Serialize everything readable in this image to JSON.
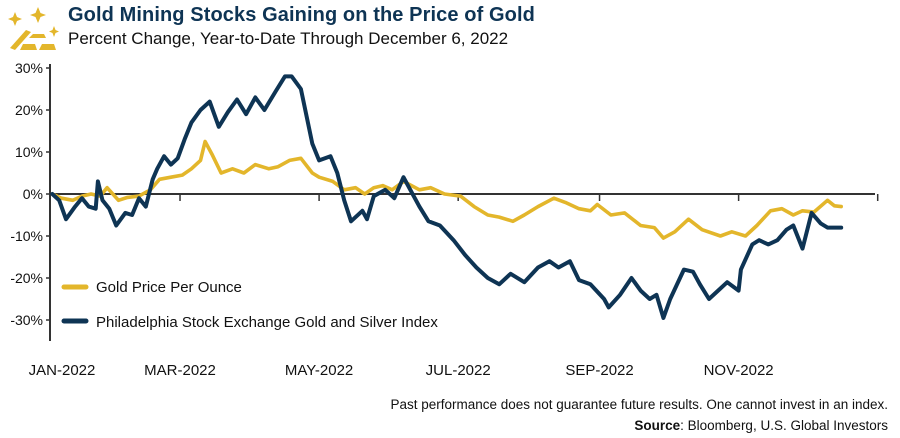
{
  "header": {
    "title": "Gold Mining Stocks Gaining on the Price of Gold",
    "subtitle": "Percent Change, Year-to-Date Through December 6, 2022",
    "logo_icon": "gold-bars-sparkle-icon"
  },
  "footer": {
    "disclaimer": "Past performance does not guarantee future results. One cannot invest in an index.",
    "source_label": "Source",
    "source_text": ": Bloomberg, U.S. Global Investors"
  },
  "colors": {
    "gold": "#e3b62b",
    "navy": "#0e3454",
    "axis": "#333333",
    "title": "#0e3454"
  },
  "chart_data": {
    "type": "line",
    "title": "Gold Mining Stocks Gaining on the Price of Gold",
    "subtitle": "Percent Change, Year-to-Date Through December 6, 2022",
    "xlabel": "",
    "ylabel": "",
    "x_unit": "day of year 2022",
    "xlim": [
      0,
      365
    ],
    "ylim": [
      -35,
      30
    ],
    "yticks": [
      30,
      20,
      10,
      0,
      -10,
      -20,
      -30
    ],
    "ytick_labels": [
      "30%",
      "20%",
      "10%",
      "0%",
      "-10%",
      "-20%",
      "-30%"
    ],
    "xticks": [
      59,
      120,
      181,
      243,
      304,
      365
    ],
    "xtick_labels": [
      "JAN-2022",
      "MAR-2022",
      "MAY-2022",
      "JUL-2022",
      "SEP-2022",
      "NOV-2022"
    ],
    "xlabel_days": [
      7,
      59,
      120,
      181,
      243,
      304
    ],
    "grid": false,
    "legend": "lower-left",
    "series": [
      {
        "name": "Gold Price Per Ounce",
        "color": "#e3b62b",
        "x": [
          3,
          7,
          12,
          16,
          20,
          24,
          27,
          32,
          36,
          41,
          46,
          50,
          55,
          60,
          64,
          68,
          70,
          73,
          77,
          82,
          87,
          92,
          98,
          102,
          107,
          112,
          117,
          120,
          126,
          131,
          136,
          140,
          144,
          148,
          152,
          157,
          164,
          169,
          175,
          182,
          188,
          194,
          199,
          205,
          210,
          216,
          223,
          228,
          234,
          239,
          242,
          248,
          254,
          261,
          267,
          271,
          276,
          282,
          288,
          296,
          301,
          307,
          312,
          318,
          323,
          328,
          332,
          337,
          343,
          346,
          349
        ],
        "values": [
          0,
          -1,
          -1.5,
          -0.5,
          0,
          -0.5,
          1.5,
          -1.5,
          -0.8,
          -0.5,
          1,
          3.5,
          4,
          4.5,
          6,
          8,
          12.5,
          9.5,
          5,
          6,
          5,
          7,
          6,
          6.5,
          8,
          8.5,
          5,
          4,
          3,
          1,
          1.5,
          0,
          1.5,
          2,
          1,
          3,
          1,
          1.5,
          0,
          -0.5,
          -3,
          -5,
          -5.5,
          -6.5,
          -5,
          -3,
          -1,
          -2,
          -3.5,
          -4,
          -2.5,
          -5,
          -4.5,
          -7.5,
          -8,
          -10.5,
          -9,
          -6,
          -8.5,
          -10,
          -9,
          -10,
          -7.5,
          -4,
          -3.5,
          -5,
          -4,
          -4.3,
          -1.5,
          -2.8,
          -3
        ]
      },
      {
        "name": "Philadelphia Stock Exchange Gold and Silver Index",
        "color": "#0e3454",
        "x": [
          3,
          6,
          9,
          13,
          16,
          19,
          22,
          23,
          25,
          28,
          31,
          35,
          38,
          41,
          44,
          47,
          49,
          52,
          55,
          58,
          61,
          64,
          68,
          72,
          76,
          80,
          84,
          88,
          92,
          96,
          101,
          105,
          108,
          112,
          117,
          120,
          125,
          128,
          131,
          134,
          139,
          141,
          144,
          149,
          153,
          157,
          160,
          164,
          168,
          173,
          179,
          184,
          189,
          194,
          199,
          204,
          210,
          216,
          221,
          225,
          230,
          234,
          239,
          245,
          247,
          252,
          257,
          261,
          265,
          268,
          271,
          274,
          280,
          284,
          287,
          291,
          295,
          299,
          304,
          305,
          310,
          313,
          317,
          321,
          325,
          328,
          332,
          336,
          340,
          343,
          346,
          349
        ],
        "values": [
          0,
          -1.5,
          -6,
          -3,
          -1,
          -3,
          -3.5,
          3,
          -1.5,
          -3.5,
          -7.5,
          -4.5,
          -5,
          -1,
          -3,
          3.5,
          6,
          9,
          7,
          8.5,
          13,
          17,
          20,
          22,
          16,
          19.5,
          22.5,
          19,
          23,
          20,
          24.5,
          28,
          28,
          25,
          12,
          8,
          9,
          5,
          -1.5,
          -6.5,
          -4,
          -6,
          -0.5,
          1,
          -1,
          4,
          1,
          -3,
          -6.5,
          -7.5,
          -11,
          -14.5,
          -17.5,
          -20,
          -21.5,
          -19,
          -21,
          -17.5,
          -16,
          -17.5,
          -16,
          -20.5,
          -21.5,
          -25,
          -27,
          -24,
          -20,
          -23,
          -25,
          -24,
          -29.5,
          -25,
          -18,
          -18.5,
          -21.5,
          -25,
          -23,
          -21,
          -23,
          -18,
          -12,
          -11,
          -12,
          -11,
          -8.5,
          -7.5,
          -13,
          -4.5,
          -7,
          -8,
          -8,
          -8
        ]
      }
    ]
  }
}
